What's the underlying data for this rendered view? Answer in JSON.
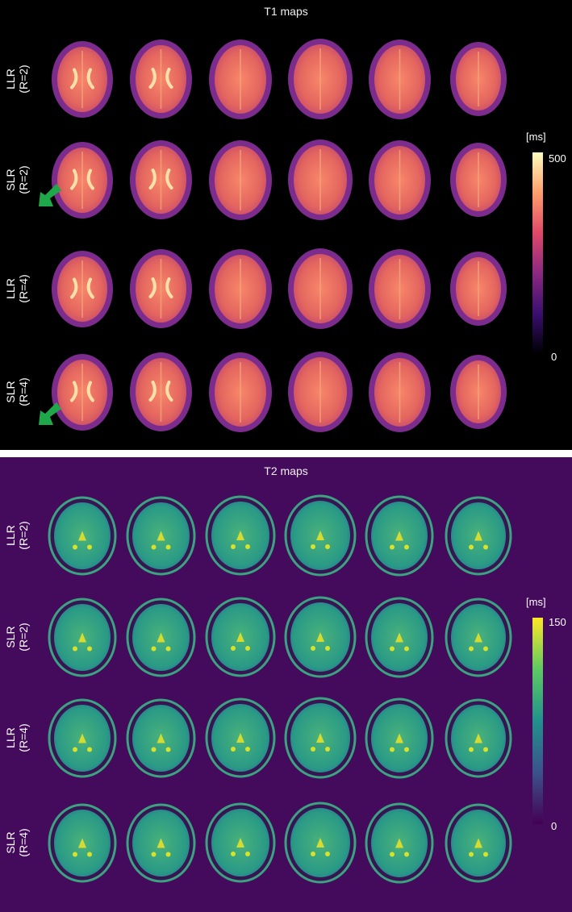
{
  "t1": {
    "title": "T1 maps",
    "rows": [
      {
        "method": "LLR",
        "factor": "(R=2)"
      },
      {
        "method": "SLR",
        "factor": "(R=2)"
      },
      {
        "method": "LLR",
        "factor": "(R=4)"
      },
      {
        "method": "SLR",
        "factor": "(R=4)"
      }
    ],
    "colorbar": {
      "unit": "[ms]",
      "max": "500",
      "min": "0",
      "stops": [
        "#000004",
        "#3b0f70",
        "#8c2981",
        "#de4968",
        "#fe9f6d",
        "#fcfdbf"
      ]
    },
    "background": "#000000",
    "arrow_color": "#1fa84a"
  },
  "t2": {
    "title": "T2 maps",
    "rows": [
      {
        "method": "LLR",
        "factor": "(R=2)"
      },
      {
        "method": "SLR",
        "factor": "(R=2)"
      },
      {
        "method": "LLR",
        "factor": "(R=4)"
      },
      {
        "method": "SLR",
        "factor": "(R=4)"
      }
    ],
    "colorbar": {
      "unit": "[ms]",
      "max": "150",
      "min": "0",
      "stops": [
        "#440154",
        "#3b528b",
        "#21918c",
        "#5ec962",
        "#fde725"
      ]
    },
    "background": "#440a5c"
  }
}
